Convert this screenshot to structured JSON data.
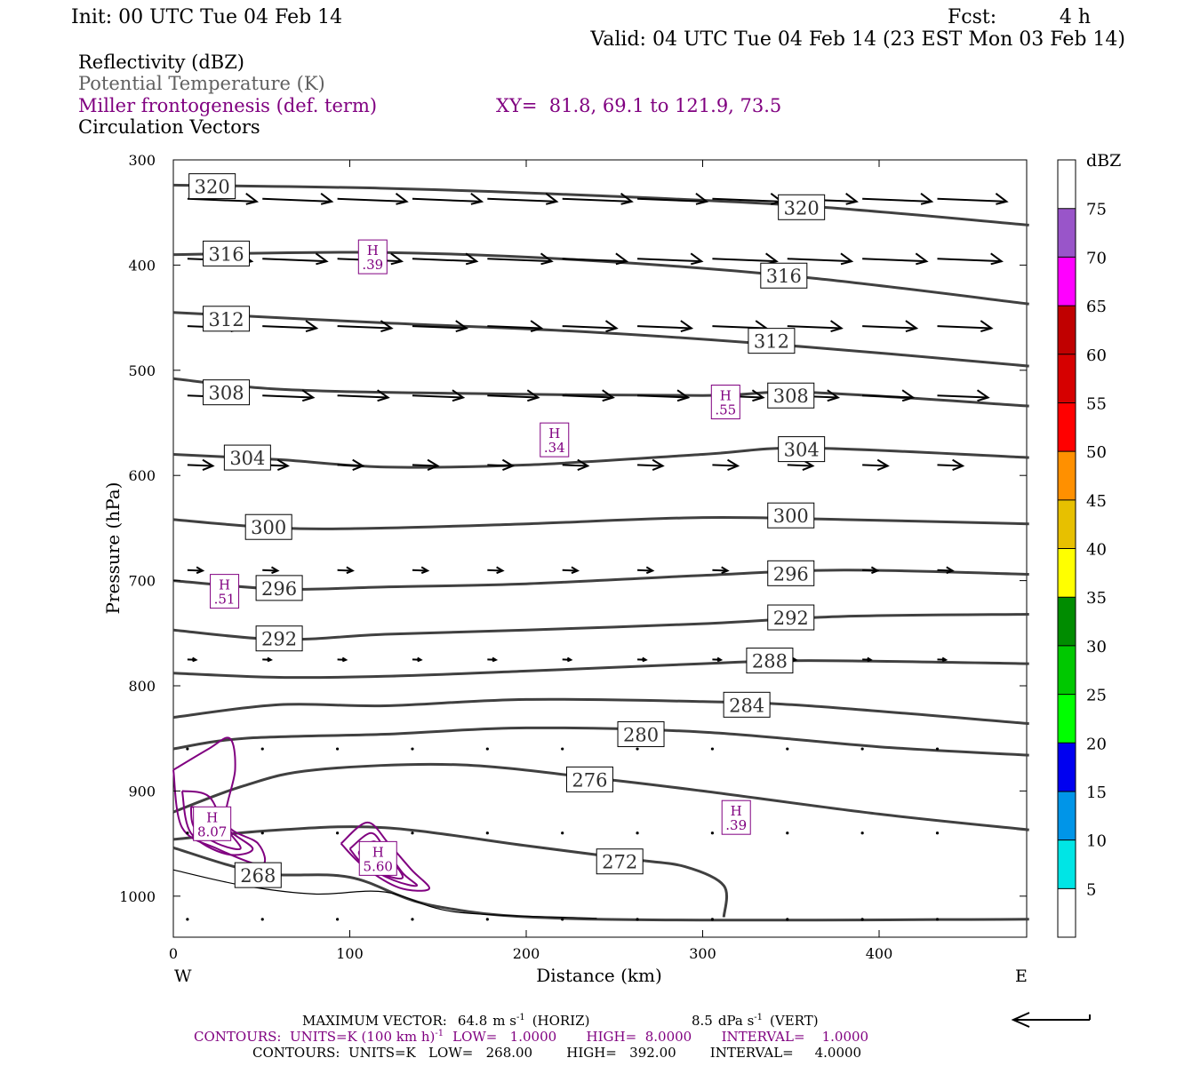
{
  "header": {
    "init": "Init: 00 UTC Tue 04 Feb 14",
    "fcst_label": "Fcst:",
    "fcst_value": "4 h",
    "valid": "Valid: 04 UTC Tue 04 Feb 14 (23 EST Mon 03 Feb 14)",
    "field1": "Reflectivity (dBZ)",
    "field2": "Potential Temperature (K)",
    "field3": "Miller frontogenesis (def. term)",
    "xy": "XY=  81.8, 69.1 to 121.9, 73.5",
    "field4": "Circulation Vectors"
  },
  "colors": {
    "theta": "#404040",
    "fronto": "#800080",
    "vector": "#000000",
    "subtitle_gray": "#606060"
  },
  "chart_data": {
    "type": "contour",
    "xlabel": "Distance (km)",
    "ylabel": "Pressure (hPa)",
    "xlim": [
      0,
      485
    ],
    "ylim": [
      1040,
      300
    ],
    "x_ticks": [
      0,
      100,
      200,
      300,
      400
    ],
    "y_ticks": [
      300,
      400,
      500,
      600,
      700,
      800,
      900,
      1000
    ],
    "x_tick_labels": [
      "0",
      "100",
      "200",
      "300",
      "400"
    ],
    "y_tick_labels": [
      "300",
      "400",
      "500",
      "600",
      "700",
      "800",
      "900",
      "1000"
    ],
    "west_label": "W",
    "east_label": "E",
    "theta_contours": [
      {
        "level": "320",
        "points": [
          [
            0,
            324
          ],
          [
            120,
            327
          ],
          [
            240,
            334
          ],
          [
            360,
            344
          ],
          [
            485,
            362
          ]
        ],
        "labels": [
          [
            22,
            325
          ],
          [
            356,
            345
          ]
        ]
      },
      {
        "level": "316",
        "points": [
          [
            0,
            390
          ],
          [
            120,
            388
          ],
          [
            240,
            396
          ],
          [
            360,
            412
          ],
          [
            485,
            437
          ]
        ],
        "labels": [
          [
            30,
            389
          ],
          [
            346,
            410
          ]
        ]
      },
      {
        "level": "312",
        "points": [
          [
            0,
            445
          ],
          [
            120,
            455
          ],
          [
            240,
            464
          ],
          [
            360,
            478
          ],
          [
            485,
            496
          ]
        ],
        "labels": [
          [
            30,
            451
          ],
          [
            339,
            472
          ]
        ]
      },
      {
        "level": "308",
        "points": [
          [
            0,
            508
          ],
          [
            60,
            518
          ],
          [
            160,
            522
          ],
          [
            300,
            524
          ],
          [
            360,
            521
          ],
          [
            485,
            534
          ]
        ],
        "labels": [
          [
            30,
            521
          ],
          [
            350,
            524
          ]
        ]
      },
      {
        "level": "304",
        "points": [
          [
            0,
            580
          ],
          [
            60,
            585
          ],
          [
            120,
            592
          ],
          [
            200,
            590
          ],
          [
            300,
            580
          ],
          [
            360,
            574
          ],
          [
            485,
            583
          ]
        ],
        "labels": [
          [
            42,
            583
          ],
          [
            356,
            575
          ]
        ]
      },
      {
        "level": "300",
        "points": [
          [
            0,
            642
          ],
          [
            60,
            650
          ],
          [
            120,
            650
          ],
          [
            200,
            646
          ],
          [
            300,
            640
          ],
          [
            380,
            642
          ],
          [
            485,
            646
          ]
        ],
        "labels": [
          [
            54,
            649
          ],
          [
            350,
            638
          ]
        ]
      },
      {
        "level": "296",
        "points": [
          [
            0,
            700
          ],
          [
            60,
            708
          ],
          [
            120,
            706
          ],
          [
            200,
            703
          ],
          [
            300,
            695
          ],
          [
            380,
            690
          ],
          [
            485,
            694
          ]
        ],
        "labels": [
          [
            60,
            707
          ],
          [
            350,
            693
          ]
        ]
      },
      {
        "level": "292",
        "points": [
          [
            0,
            747
          ],
          [
            60,
            756
          ],
          [
            120,
            751
          ],
          [
            200,
            747
          ],
          [
            300,
            741
          ],
          [
            380,
            734
          ],
          [
            485,
            732
          ]
        ],
        "labels": [
          [
            60,
            755
          ],
          [
            350,
            735
          ]
        ]
      },
      {
        "level": "288",
        "points": [
          [
            0,
            788
          ],
          [
            60,
            792
          ],
          [
            120,
            791
          ],
          [
            200,
            786
          ],
          [
            300,
            779
          ],
          [
            360,
            776
          ],
          [
            485,
            779
          ]
        ],
        "labels": [
          [
            338,
            776
          ]
        ]
      },
      {
        "level": "284",
        "points": [
          [
            0,
            830
          ],
          [
            60,
            818
          ],
          [
            120,
            819
          ],
          [
            200,
            813
          ],
          [
            300,
            815
          ],
          [
            360,
            819
          ],
          [
            485,
            836
          ]
        ],
        "labels": [
          [
            325,
            818
          ]
        ]
      },
      {
        "level": "280",
        "points": [
          [
            0,
            860
          ],
          [
            40,
            850
          ],
          [
            120,
            846
          ],
          [
            200,
            840
          ],
          [
            300,
            844
          ],
          [
            400,
            858
          ],
          [
            485,
            866
          ]
        ],
        "labels": [
          [
            265,
            846
          ]
        ]
      },
      {
        "level": "276",
        "points": [
          [
            0,
            920
          ],
          [
            40,
            895
          ],
          [
            80,
            880
          ],
          [
            160,
            875
          ],
          [
            240,
            888
          ],
          [
            300,
            900
          ],
          [
            400,
            922
          ],
          [
            485,
            937
          ]
        ],
        "labels": [
          [
            236,
            889
          ]
        ]
      },
      {
        "level": "272",
        "points": [
          [
            0,
            946
          ],
          [
            60,
            937
          ],
          [
            120,
            935
          ],
          [
            200,
            952
          ],
          [
            260,
            965
          ],
          [
            290,
            972
          ],
          [
            312,
            990
          ],
          [
            312,
            1020
          ]
        ],
        "labels": [
          [
            253,
            967
          ]
        ]
      },
      {
        "level": "268",
        "points": [
          [
            0,
            954
          ],
          [
            50,
            978
          ],
          [
            100,
            982
          ],
          [
            150,
            1010
          ],
          [
            240,
            1022
          ],
          [
            485,
            1022
          ]
        ],
        "labels": [
          [
            48,
            980
          ]
        ]
      }
    ],
    "thin_contours": [
      {
        "points": [
          [
            0,
            975
          ],
          [
            40,
            990
          ],
          [
            80,
            998
          ],
          [
            120,
            996
          ],
          [
            160,
            1015
          ],
          [
            240,
            1021
          ]
        ]
      }
    ],
    "fronto_contours": [
      {
        "points": [
          [
            0,
            880
          ],
          [
            20,
            860
          ],
          [
            32,
            850
          ],
          [
            35,
            880
          ],
          [
            30,
            930
          ],
          [
            48,
            950
          ],
          [
            50,
            970
          ],
          [
            25,
            955
          ],
          [
            5,
            935
          ],
          [
            0,
            880
          ]
        ]
      },
      {
        "points": [
          [
            5,
            900
          ],
          [
            20,
            905
          ],
          [
            30,
            935
          ],
          [
            45,
            955
          ],
          [
            30,
            960
          ],
          [
            10,
            940
          ],
          [
            5,
            900
          ]
        ]
      },
      {
        "points": [
          [
            10,
            915
          ],
          [
            22,
            920
          ],
          [
            32,
            940
          ],
          [
            38,
            955
          ],
          [
            25,
            950
          ],
          [
            12,
            935
          ],
          [
            10,
            915
          ]
        ]
      },
      {
        "points": [
          [
            95,
            950
          ],
          [
            110,
            930
          ],
          [
            122,
            950
          ],
          [
            135,
            975
          ],
          [
            145,
            993
          ],
          [
            128,
            992
          ],
          [
            108,
            972
          ],
          [
            95,
            950
          ]
        ]
      },
      {
        "points": [
          [
            100,
            955
          ],
          [
            112,
            940
          ],
          [
            120,
            955
          ],
          [
            130,
            978
          ],
          [
            138,
            990
          ],
          [
            125,
            985
          ],
          [
            108,
            970
          ],
          [
            100,
            955
          ]
        ]
      },
      {
        "points": [
          [
            105,
            958
          ],
          [
            114,
            948
          ],
          [
            122,
            962
          ],
          [
            130,
            982
          ],
          [
            120,
            980
          ],
          [
            108,
            968
          ],
          [
            105,
            958
          ]
        ]
      }
    ],
    "highs": [
      {
        "label": "H",
        "value": ".39",
        "x": 113,
        "y": 393
      },
      {
        "label": "H",
        "value": ".55",
        "x": 313,
        "y": 531
      },
      {
        "label": "H",
        "value": ".34",
        "x": 216,
        "y": 567
      },
      {
        "label": "H",
        "value": ".51",
        "x": 29,
        "y": 711
      },
      {
        "label": "H",
        "value": "8.07",
        "x": 22,
        "y": 932
      },
      {
        "label": "H",
        "value": "5.60",
        "x": 116,
        "y": 965
      },
      {
        "label": "H",
        "value": ".39",
        "x": 319,
        "y": 926
      }
    ],
    "vector_scale_m_s": 64.8,
    "vector_rows": [
      {
        "p": 337,
        "u": 41,
        "n": 11
      },
      {
        "p": 394,
        "u": 38,
        "n": 11
      },
      {
        "p": 458,
        "u": 32,
        "n": 11
      },
      {
        "p": 524,
        "u": 30,
        "n": 11
      },
      {
        "p": 590,
        "u": 15,
        "n": 11
      },
      {
        "p": 690,
        "u": 9,
        "n": 11
      },
      {
        "p": 775,
        "u": 5,
        "n": 11
      },
      {
        "p": 860,
        "u": 2,
        "n": 11
      },
      {
        "p": 940,
        "u": 1,
        "n": 11
      },
      {
        "p": 1022,
        "u": 1,
        "n": 11
      }
    ],
    "colorbar": {
      "unit": "dBZ",
      "labels": [
        "5",
        "10",
        "15",
        "20",
        "25",
        "30",
        "35",
        "40",
        "45",
        "50",
        "55",
        "60",
        "65",
        "70",
        "75"
      ],
      "colors": [
        "#ffffff",
        "#00e5e5",
        "#0095e8",
        "#0000f0",
        "#00ff00",
        "#00c800",
        "#008c00",
        "#ffff00",
        "#e7c000",
        "#ff9000",
        "#ff0000",
        "#d60000",
        "#c00000",
        "#ff00ff",
        "#9955c9",
        "#ffffff"
      ]
    },
    "footer": {
      "max_vector_label": "MAXIMUM VECTOR:",
      "max_vector_horiz_value": "64.8",
      "max_vector_horiz_unit": "m s",
      "max_vector_horiz_exp": "-1",
      "max_vector_horiz_tag": "(HORIZ)",
      "max_vector_vert_value": "8.5",
      "max_vector_vert_unit": "dPa s",
      "max_vector_vert_exp": "-1",
      "max_vector_vert_tag": "(VERT)",
      "contours1_a": "CONTOURS:  UNITS=K (100 km h)",
      "contours1_exp": "-1",
      "contours1_b": "LOW=   1.0000       HIGH=  8.0000       INTERVAL=    1.0000",
      "contours2": "CONTOURS:  UNITS=K   LOW=   268.00        HIGH=   392.00        INTERVAL=     4.0000"
    }
  }
}
